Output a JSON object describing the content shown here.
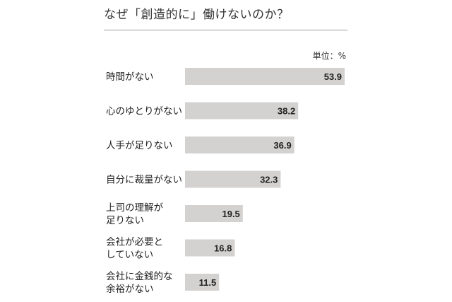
{
  "title": "なぜ「創造的に」働けないのか？",
  "unit_label": "単位：%",
  "colors": {
    "bar": "#d4d2d0",
    "text": "#222222",
    "rule": "#999999"
  },
  "chart_data": {
    "type": "bar",
    "orientation": "horizontal",
    "title": "なぜ「創造的に」働けないのか？",
    "unit": "単位：%",
    "categories": [
      [
        "時間がない"
      ],
      [
        "心のゆとりがない"
      ],
      [
        "人手が足りない"
      ],
      [
        "自分に裁量がない"
      ],
      [
        "上司の理解が",
        "足りない"
      ],
      [
        "会社が必要と",
        "していない"
      ],
      [
        "会社に金銭的な",
        "余裕がない"
      ]
    ],
    "values": [
      53.9,
      38.2,
      36.9,
      32.3,
      19.5,
      16.8,
      11.5
    ],
    "value_labels": [
      "53.9",
      "38.2",
      "36.9",
      "32.3",
      "19.5",
      "16.8",
      "11.5"
    ],
    "xlim": [
      0,
      53.9
    ],
    "grid": false,
    "legend": "none"
  }
}
